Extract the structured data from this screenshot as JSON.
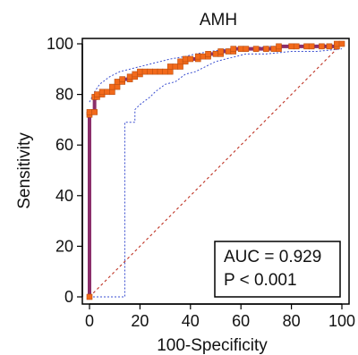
{
  "chart_data": {
    "type": "line",
    "title": "AMH",
    "xlabel": "100-Specificity",
    "ylabel": "Sensitivity",
    "xlim": [
      0,
      100
    ],
    "ylim": [
      0,
      100
    ],
    "x_ticks": [
      0,
      20,
      40,
      60,
      80,
      100
    ],
    "y_ticks": [
      0,
      20,
      40,
      60,
      80,
      100
    ],
    "grid": false,
    "colors": {
      "roc_line": "#8b2f6b",
      "roc_markers": "#f26a1b",
      "ci_band": "#3b4fd0",
      "diagonal": "#c0392b"
    },
    "series": [
      {
        "points": [
          [
            0,
            0
          ],
          [
            0,
            72
          ],
          [
            0,
            73
          ],
          [
            2,
            73
          ],
          [
            2,
            79
          ],
          [
            3,
            79
          ],
          [
            3,
            80
          ],
          [
            5,
            80
          ],
          [
            5,
            81
          ],
          [
            7,
            81
          ],
          [
            9,
            81
          ],
          [
            9,
            83
          ],
          [
            11,
            83
          ],
          [
            11,
            85
          ],
          [
            13,
            85
          ],
          [
            13,
            86
          ],
          [
            16,
            86
          ],
          [
            16,
            87
          ],
          [
            18,
            87
          ],
          [
            18,
            88
          ],
          [
            20,
            88
          ],
          [
            20,
            89
          ],
          [
            22,
            89
          ],
          [
            24,
            89
          ],
          [
            26,
            89
          ],
          [
            28,
            89
          ],
          [
            30,
            89
          ],
          [
            32,
            89
          ],
          [
            32,
            91
          ],
          [
            34,
            91
          ],
          [
            36,
            91
          ],
          [
            36,
            93
          ],
          [
            38,
            93
          ],
          [
            38,
            94
          ],
          [
            40,
            94
          ],
          [
            43,
            94
          ],
          [
            43,
            95
          ],
          [
            45,
            95
          ],
          [
            47,
            95
          ],
          [
            47,
            96
          ],
          [
            50,
            96
          ],
          [
            52,
            96
          ],
          [
            52,
            97
          ],
          [
            55,
            97
          ],
          [
            57,
            97
          ],
          [
            57,
            98
          ],
          [
            60,
            98
          ],
          [
            62,
            98
          ],
          [
            66,
            98
          ],
          [
            70,
            98
          ],
          [
            73,
            98
          ],
          [
            75,
            98
          ],
          [
            75,
            99
          ],
          [
            80,
            99
          ],
          [
            82,
            99
          ],
          [
            86,
            99
          ],
          [
            88,
            99
          ],
          [
            92,
            99
          ],
          [
            95,
            99
          ],
          [
            98,
            99
          ],
          [
            98,
            100
          ],
          [
            100,
            100
          ]
        ]
      },
      {
        "points": [
          [
            0,
            77
          ],
          [
            2,
            81
          ],
          [
            4,
            84
          ],
          [
            8,
            87
          ],
          [
            12,
            89
          ],
          [
            16,
            90
          ],
          [
            20,
            91
          ],
          [
            24,
            92
          ],
          [
            28,
            93
          ],
          [
            32,
            94
          ],
          [
            38,
            95
          ],
          [
            42,
            96
          ],
          [
            48,
            97
          ],
          [
            55,
            98
          ],
          [
            62,
            98
          ],
          [
            70,
            99
          ],
          [
            80,
            99
          ],
          [
            90,
            99.5
          ],
          [
            100,
            100
          ]
        ]
      },
      {
        "points": [
          [
            0,
            0
          ],
          [
            14,
            0
          ],
          [
            14,
            69
          ],
          [
            18,
            69
          ],
          [
            18,
            74
          ],
          [
            20,
            76
          ],
          [
            24,
            79
          ],
          [
            26,
            81
          ],
          [
            30,
            84
          ],
          [
            34,
            85
          ],
          [
            38,
            88
          ],
          [
            42,
            89
          ],
          [
            46,
            91
          ],
          [
            50,
            93
          ],
          [
            54,
            94
          ],
          [
            58,
            95
          ],
          [
            62,
            96
          ],
          [
            70,
            96
          ],
          [
            80,
            97
          ],
          [
            90,
            97
          ],
          [
            100,
            98
          ]
        ]
      }
    ],
    "diagonal": [
      [
        0,
        0
      ],
      [
        100,
        100
      ]
    ],
    "annotations": [
      "AUC = 0.929",
      "P < 0.001"
    ]
  }
}
